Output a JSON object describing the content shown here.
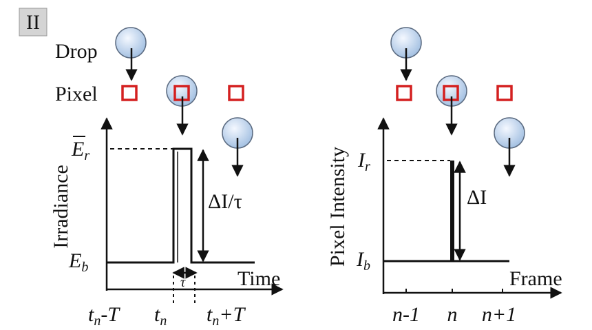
{
  "badge": "II",
  "left": {
    "drop_label": "Drop",
    "pixel_label": "Pixel",
    "y_label": "Irradiance",
    "x_label": "Time",
    "top_level": {
      "base": "E",
      "sub": "r"
    },
    "base_level": {
      "base": "E",
      "sub": "b"
    },
    "delta_label": "ΔI/τ",
    "width_label": "τ",
    "x_ticks": [
      {
        "base": "t",
        "sub": "n",
        "suffix": "-T"
      },
      {
        "base": "t",
        "sub": "n"
      },
      {
        "base": "t",
        "sub": "n",
        "suffix": "+T"
      }
    ]
  },
  "right": {
    "y_label": "Pixel Intensity",
    "x_label": "Frame",
    "top_level": {
      "base": "I",
      "sub": "r"
    },
    "base_level": {
      "base": "I",
      "sub": "b"
    },
    "delta_label": "ΔI",
    "x_ticks": [
      "n-1",
      "n",
      "n+1"
    ]
  }
}
